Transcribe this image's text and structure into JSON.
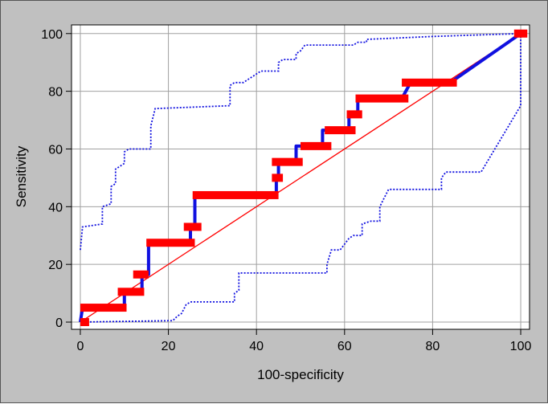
{
  "chart_data": {
    "type": "line",
    "xlabel": "100-specificity",
    "ylabel": "Sensitivity",
    "xlim": [
      -2,
      102
    ],
    "ylim": [
      -2.5,
      103
    ],
    "x_ticks": [
      0,
      20,
      40,
      60,
      80,
      100
    ],
    "y_ticks": [
      0,
      20,
      40,
      60,
      80,
      100
    ],
    "grid": true,
    "colors": {
      "plot_background": "#ffffff",
      "frame_background": "#c0c0c0",
      "grid": "#a0a0a0",
      "roc_curve": "#1010e0",
      "ci_bands": "#1010e0",
      "markers": "#ff0000",
      "reference_line": "#ff0000"
    },
    "roc_curve": [
      [
        0,
        0
      ],
      [
        0.5,
        5
      ],
      [
        10,
        5
      ],
      [
        10,
        10.5
      ],
      [
        14,
        10.5
      ],
      [
        14,
        16.5
      ],
      [
        15.5,
        16.5
      ],
      [
        15.5,
        27.5
      ],
      [
        25,
        27.5
      ],
      [
        25,
        33
      ],
      [
        26,
        33
      ],
      [
        26,
        44
      ],
      [
        44.5,
        44
      ],
      [
        44.5,
        50
      ],
      [
        45,
        50
      ],
      [
        45,
        55.5
      ],
      [
        49,
        55.5
      ],
      [
        49,
        61
      ],
      [
        55,
        61
      ],
      [
        55,
        66.5
      ],
      [
        61,
        66.5
      ],
      [
        61,
        72
      ],
      [
        63,
        72
      ],
      [
        63,
        77.5
      ],
      [
        73,
        77.5
      ],
      [
        75,
        83
      ],
      [
        84,
        83
      ],
      [
        100,
        100
      ]
    ],
    "markers": [
      {
        "x": [
          0,
          2
        ],
        "y": 0
      },
      {
        "x": [
          0,
          10.5
        ],
        "y": 5
      },
      {
        "x": [
          8.5,
          14.5
        ],
        "y": 10.5
      },
      {
        "x": [
          12,
          15.5
        ],
        "y": 16.5
      },
      {
        "x": [
          15,
          26
        ],
        "y": 27.5
      },
      {
        "x": [
          23.5,
          27.5
        ],
        "y": 33
      },
      {
        "x": [
          25.5,
          45
        ],
        "y": 44
      },
      {
        "x": [
          43.5,
          46
        ],
        "y": 50
      },
      {
        "x": [
          43.5,
          50.5
        ],
        "y": 55.5
      },
      {
        "x": [
          50,
          57
        ],
        "y": 61
      },
      {
        "x": [
          55.5,
          62.5
        ],
        "y": 66.5
      },
      {
        "x": [
          60.5,
          64
        ],
        "y": 72
      },
      {
        "x": [
          62.5,
          74.5
        ],
        "y": 77.5
      },
      {
        "x": [
          73,
          85.5
        ],
        "y": 83
      },
      {
        "x": [
          98.5,
          101.5
        ],
        "y": 100
      }
    ],
    "ci_upper": [
      [
        0,
        25
      ],
      [
        0.5,
        33
      ],
      [
        5,
        34
      ],
      [
        5,
        40
      ],
      [
        7,
        41
      ],
      [
        7,
        47
      ],
      [
        8,
        48
      ],
      [
        8,
        53
      ],
      [
        10,
        55
      ],
      [
        10,
        59
      ],
      [
        11,
        60
      ],
      [
        16,
        60
      ],
      [
        16,
        68
      ],
      [
        17,
        74
      ],
      [
        34,
        75
      ],
      [
        34,
        82
      ],
      [
        35,
        83
      ],
      [
        37,
        83
      ],
      [
        39,
        85
      ],
      [
        41,
        87
      ],
      [
        45,
        87
      ],
      [
        45,
        90
      ],
      [
        46,
        91
      ],
      [
        49,
        91
      ],
      [
        49,
        93
      ],
      [
        50,
        94
      ],
      [
        51,
        96
      ],
      [
        62,
        96
      ],
      [
        63,
        97
      ],
      [
        65,
        97
      ],
      [
        65,
        98
      ],
      [
        80,
        99
      ],
      [
        100,
        100
      ]
    ],
    "ci_lower": [
      [
        0,
        0
      ],
      [
        21,
        0.5
      ],
      [
        22,
        2
      ],
      [
        23,
        3
      ],
      [
        24,
        6
      ],
      [
        25,
        7
      ],
      [
        35,
        7
      ],
      [
        35,
        10
      ],
      [
        36,
        11
      ],
      [
        36,
        17
      ],
      [
        56,
        17
      ],
      [
        56,
        20
      ],
      [
        57,
        25
      ],
      [
        59,
        25
      ],
      [
        60,
        27
      ],
      [
        61,
        29
      ],
      [
        62,
        30
      ],
      [
        64,
        30
      ],
      [
        64,
        34
      ],
      [
        66,
        35
      ],
      [
        68,
        35
      ],
      [
        68,
        40
      ],
      [
        69,
        43
      ],
      [
        70,
        46
      ],
      [
        82,
        46
      ],
      [
        82,
        50
      ],
      [
        83,
        52
      ],
      [
        91,
        52
      ],
      [
        100,
        75
      ],
      [
        100,
        100
      ]
    ],
    "reference_line": [
      [
        0,
        0
      ],
      [
        100,
        100
      ]
    ]
  }
}
